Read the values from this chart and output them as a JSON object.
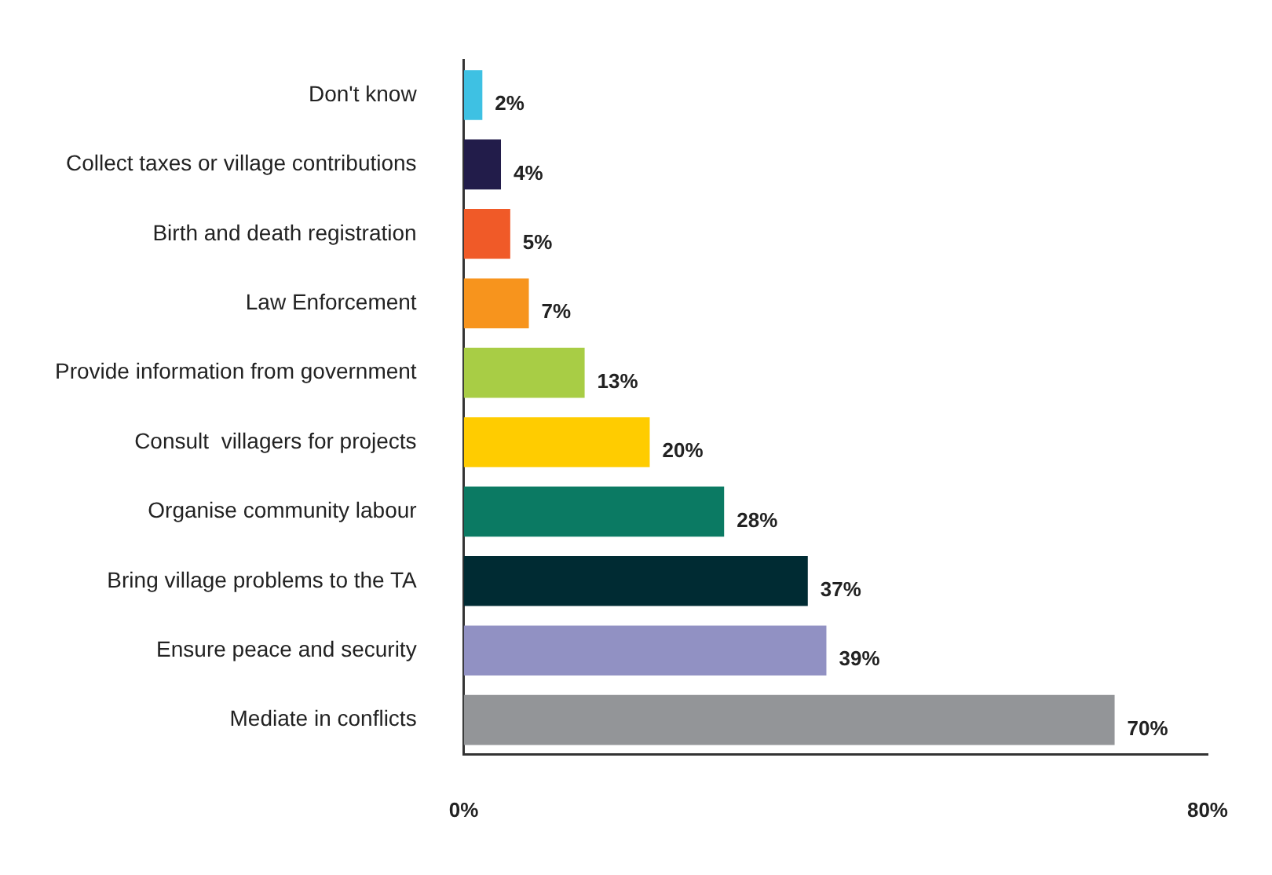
{
  "chart_data": {
    "type": "bar",
    "orientation": "horizontal",
    "categories": [
      "Don't know",
      "Collect taxes or village contributions",
      "Birth and death registration",
      "Law Enforcement",
      "Provide information from government",
      "Consult  villagers for projects",
      "Organise community labour",
      "Bring village problems to the TA",
      "Ensure peace and security",
      "Mediate in conflicts"
    ],
    "values": [
      2,
      4,
      5,
      7,
      13,
      20,
      28,
      37,
      39,
      70
    ],
    "colors": [
      "#3ec1e3",
      "#221c4a",
      "#f05a28",
      "#f7941d",
      "#a8cd45",
      "#ffcc00",
      "#0b7a63",
      "#002b33",
      "#9191c3",
      "#939598"
    ],
    "value_labels": [
      "2%",
      "4%",
      "5%",
      "7%",
      "13%",
      "20%",
      "28%",
      "37%",
      "39%",
      "70%"
    ],
    "xlim": [
      0,
      80
    ],
    "xticks": [
      {
        "value": 0,
        "label": "0%"
      },
      {
        "value": 80,
        "label": "80%"
      }
    ],
    "grid": false,
    "legend": false
  }
}
